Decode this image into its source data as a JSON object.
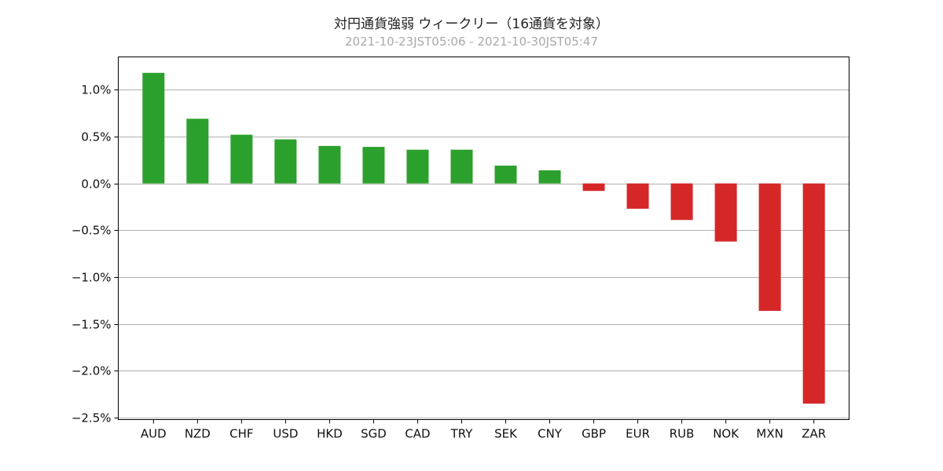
{
  "chart_data": {
    "type": "bar",
    "title": "対円通貨強弱 ウィークリー（16通貨を対象）",
    "subtitle": "2021-10-23JST05:06 - 2021-10-30JST05:47",
    "xlabel": "",
    "ylabel": "",
    "categories": [
      "AUD",
      "NZD",
      "CHF",
      "USD",
      "HKD",
      "SGD",
      "CAD",
      "TRY",
      "SEK",
      "CNY",
      "GBP",
      "EUR",
      "RUB",
      "NOK",
      "MXN",
      "ZAR"
    ],
    "values": [
      1.18,
      0.69,
      0.52,
      0.47,
      0.4,
      0.39,
      0.36,
      0.36,
      0.19,
      0.14,
      -0.08,
      -0.27,
      -0.39,
      -0.62,
      -1.36,
      -2.35
    ],
    "ylim": [
      -2.52,
      1.35
    ],
    "yticks": [
      1.0,
      0.5,
      0.0,
      -0.5,
      -1.0,
      -1.5,
      -2.0,
      -2.5
    ],
    "ytick_labels": [
      "1.0%",
      "0.5%",
      "0.0%",
      "−0.5%",
      "−1.0%",
      "−1.5%",
      "−2.0%",
      "−2.5%"
    ],
    "grid": true,
    "colors": {
      "positive": "#2ca02c",
      "negative": "#d62728"
    }
  }
}
